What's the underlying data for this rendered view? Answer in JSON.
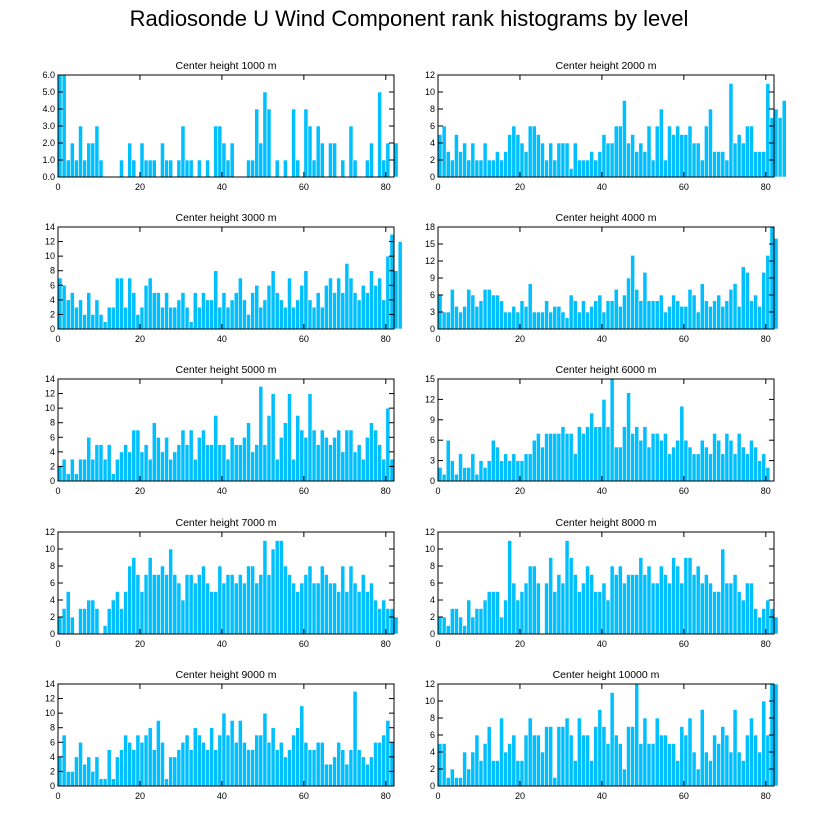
{
  "title": "Radiosonde U Wind Component rank histograms by level",
  "colors": {
    "bar": "#00BFFF",
    "bar_edge": "#ffffff",
    "axis": "#000000"
  },
  "chart_data": [
    {
      "type": "bar",
      "title": "Center height 1000 m",
      "xlim": [
        0,
        82
      ],
      "ylim": [
        0,
        6
      ],
      "xticks": [
        0,
        20,
        40,
        60,
        80
      ],
      "yticks": [
        0,
        1,
        2,
        3,
        4,
        5,
        6
      ],
      "ytick_labels": [
        "0.0",
        "1.0",
        "2.0",
        "3.0",
        "4.0",
        "5.0",
        "6.0"
      ],
      "values": [
        6,
        6,
        1,
        2,
        1,
        3,
        1,
        2,
        2,
        3,
        1,
        0,
        0,
        0,
        0,
        1,
        0,
        2,
        1,
        0,
        2,
        1,
        1,
        1,
        0,
        2,
        1,
        1,
        0,
        1,
        3,
        1,
        1,
        0,
        1,
        0,
        1,
        0,
        3,
        3,
        2,
        1,
        2,
        0,
        0,
        0,
        1,
        1,
        4,
        2,
        5,
        4,
        0,
        1,
        0,
        1,
        0,
        4,
        1,
        0,
        4,
        3,
        1,
        3,
        2,
        0,
        2,
        2,
        0,
        1,
        0,
        3,
        1,
        0,
        0,
        1,
        2,
        0,
        5,
        1,
        2,
        0,
        2
      ]
    },
    {
      "type": "bar",
      "title": "Center height 2000 m",
      "xlim": [
        0,
        82
      ],
      "ylim": [
        0,
        12
      ],
      "xticks": [
        0,
        20,
        40,
        60,
        80
      ],
      "yticks": [
        0,
        2,
        4,
        6,
        8,
        10,
        12
      ],
      "ytick_labels": [
        "0",
        "2",
        "4",
        "6",
        "8",
        "10",
        "12"
      ],
      "values": [
        5,
        6,
        3,
        2,
        5,
        3,
        4,
        2,
        4,
        2,
        2,
        4,
        2,
        2,
        3,
        2,
        3,
        5,
        6,
        5,
        4,
        3,
        6,
        6,
        5,
        4,
        2,
        4,
        2,
        4,
        4,
        4,
        1,
        4,
        2,
        2,
        2,
        3,
        2,
        3,
        5,
        4,
        4,
        6,
        6,
        9,
        4,
        5,
        3,
        4,
        3,
        6,
        2,
        6,
        8,
        2,
        6,
        5,
        6,
        5,
        5,
        6,
        4,
        4,
        2,
        6,
        8,
        3,
        3,
        3,
        2,
        11,
        4,
        5,
        4,
        6,
        6,
        3,
        3,
        3,
        11,
        7,
        8,
        7,
        9
      ]
    },
    {
      "type": "bar",
      "title": "Center height 3000 m",
      "xlim": [
        0,
        82
      ],
      "ylim": [
        0,
        14
      ],
      "xticks": [
        0,
        20,
        40,
        60,
        80
      ],
      "yticks": [
        0,
        2,
        4,
        6,
        8,
        10,
        12,
        14
      ],
      "ytick_labels": [
        "0",
        "2",
        "4",
        "6",
        "8",
        "10",
        "12",
        "14"
      ],
      "values": [
        7,
        6,
        4,
        5,
        3,
        4,
        2,
        5,
        2,
        4,
        2,
        1,
        3,
        3,
        7,
        7,
        3,
        7,
        5,
        2,
        3,
        6,
        7,
        5,
        5,
        3,
        5,
        3,
        3,
        4,
        5,
        3,
        1,
        5,
        3,
        5,
        4,
        4,
        8,
        3,
        5,
        3,
        4,
        5,
        7,
        4,
        2,
        5,
        6,
        3,
        4,
        6,
        8,
        5,
        4,
        3,
        7,
        3,
        4,
        6,
        8,
        4,
        3,
        5,
        3,
        6,
        7,
        5,
        7,
        5,
        9,
        7,
        5,
        4,
        6,
        5,
        8,
        6,
        7,
        4,
        10,
        13,
        8,
        12
      ]
    },
    {
      "type": "bar",
      "title": "Center height 4000 m",
      "xlim": [
        0,
        82
      ],
      "ylim": [
        0,
        18
      ],
      "xticks": [
        0,
        20,
        40,
        60,
        80
      ],
      "yticks": [
        0,
        3,
        6,
        9,
        12,
        15,
        18
      ],
      "ytick_labels": [
        "0",
        "3",
        "6",
        "9",
        "12",
        "15",
        "18"
      ],
      "values": [
        6,
        3,
        3,
        7,
        4,
        3,
        4,
        7,
        6,
        4,
        5,
        7,
        7,
        6,
        6,
        5,
        3,
        3,
        4,
        3,
        5,
        4,
        8,
        3,
        3,
        3,
        5,
        3,
        4,
        4,
        3,
        2,
        6,
        5,
        3,
        5,
        3,
        4,
        5,
        6,
        3,
        5,
        5,
        7,
        4,
        6,
        9,
        13,
        7,
        5,
        10,
        5,
        5,
        5,
        6,
        3,
        4,
        6,
        5,
        4,
        4,
        7,
        6,
        3,
        8,
        5,
        4,
        5,
        6,
        4,
        5,
        7,
        8,
        4,
        11,
        10,
        5,
        6,
        4,
        10,
        13,
        18,
        16
      ]
    },
    {
      "type": "bar",
      "title": "Center height 5000 m",
      "xlim": [
        0,
        82
      ],
      "ylim": [
        0,
        14
      ],
      "xticks": [
        0,
        20,
        40,
        60,
        80
      ],
      "yticks": [
        0,
        2,
        4,
        6,
        8,
        10,
        12,
        14
      ],
      "ytick_labels": [
        "0",
        "2",
        "4",
        "6",
        "8",
        "10",
        "12",
        "14"
      ],
      "values": [
        2,
        3,
        1,
        3,
        1,
        3,
        3,
        6,
        3,
        5,
        5,
        3,
        5,
        1,
        3,
        4,
        5,
        4,
        7,
        7,
        4,
        5,
        3,
        8,
        6,
        4,
        6,
        3,
        4,
        5,
        7,
        5,
        7,
        3,
        6,
        7,
        5,
        5,
        9,
        5,
        5,
        3,
        6,
        5,
        5,
        6,
        8,
        4,
        5,
        13,
        5,
        9,
        12,
        3,
        6,
        8,
        12,
        3,
        9,
        7,
        6,
        12,
        7,
        5,
        7,
        6,
        5,
        6,
        7,
        4,
        7,
        7,
        4,
        5,
        3,
        6,
        8,
        7,
        5,
        3,
        10,
        3
      ]
    },
    {
      "type": "bar",
      "title": "Center height 6000 m",
      "xlim": [
        0,
        82
      ],
      "ylim": [
        0,
        15
      ],
      "xticks": [
        0,
        20,
        40,
        60,
        80
      ],
      "yticks": [
        0,
        3,
        6,
        9,
        12,
        15
      ],
      "ytick_labels": [
        "0",
        "3",
        "6",
        "9",
        "12",
        "15"
      ],
      "values": [
        2,
        1,
        6,
        3,
        1,
        4,
        2,
        2,
        4,
        1,
        3,
        2,
        3,
        6,
        5,
        3,
        4,
        3,
        4,
        3,
        3,
        4,
        4,
        6,
        7,
        5,
        7,
        7,
        7,
        7,
        8,
        7,
        7,
        4,
        8,
        7,
        8,
        10,
        8,
        8,
        12,
        8,
        15,
        5,
        5,
        8,
        13,
        7,
        8,
        6,
        8,
        5,
        7,
        7,
        6,
        7,
        4,
        5,
        6,
        11,
        6,
        5,
        4,
        4,
        6,
        5,
        4,
        7,
        6,
        4,
        7,
        6,
        4,
        7,
        5,
        4,
        6,
        5,
        3,
        4,
        2,
        0
      ]
    },
    {
      "type": "bar",
      "title": "Center height 7000 m",
      "xlim": [
        0,
        82
      ],
      "ylim": [
        0,
        12
      ],
      "xticks": [
        0,
        20,
        40,
        60,
        80
      ],
      "yticks": [
        0,
        2,
        4,
        6,
        8,
        10,
        12
      ],
      "ytick_labels": [
        "0",
        "2",
        "4",
        "6",
        "8",
        "10",
        "12"
      ],
      "values": [
        2,
        3,
        5,
        2,
        0,
        3,
        3,
        4,
        4,
        3,
        0,
        1,
        3,
        4,
        5,
        3,
        5,
        8,
        9,
        7,
        5,
        7,
        9,
        7,
        7,
        8,
        7,
        10,
        7,
        6,
        4,
        7,
        7,
        6,
        7,
        8,
        6,
        5,
        5,
        8,
        6,
        7,
        7,
        6,
        7,
        6,
        8,
        8,
        6,
        7,
        11,
        7,
        10,
        11,
        11,
        8,
        7,
        6,
        5,
        6,
        7,
        8,
        6,
        6,
        8,
        7,
        6,
        6,
        5,
        8,
        5,
        8,
        6,
        5,
        7,
        5,
        6,
        4,
        3,
        4,
        3,
        3,
        2
      ]
    },
    {
      "type": "bar",
      "title": "Center height 8000 m",
      "xlim": [
        0,
        82
      ],
      "ylim": [
        0,
        12
      ],
      "xticks": [
        0,
        20,
        40,
        60,
        80
      ],
      "yticks": [
        0,
        2,
        4,
        6,
        8,
        10,
        12
      ],
      "ytick_labels": [
        "0",
        "2",
        "4",
        "6",
        "8",
        "10",
        "12"
      ],
      "values": [
        2,
        2,
        1,
        3,
        3,
        2,
        1,
        4,
        2,
        3,
        3,
        4,
        5,
        5,
        5,
        2,
        4,
        11,
        6,
        4,
        5,
        6,
        8,
        8,
        6,
        0,
        6,
        9,
        5,
        7,
        6,
        11,
        9,
        7,
        5,
        6,
        8,
        7,
        5,
        5,
        6,
        4,
        8,
        7,
        8,
        6,
        7,
        7,
        7,
        9,
        7,
        8,
        6,
        6,
        8,
        7,
        6,
        9,
        8,
        6,
        9,
        9,
        7,
        8,
        6,
        7,
        6,
        5,
        5,
        10,
        6,
        6,
        7,
        5,
        4,
        6,
        6,
        3,
        2,
        3,
        4,
        3,
        2
      ]
    },
    {
      "type": "bar",
      "title": "Center height 9000 m",
      "xlim": [
        0,
        82
      ],
      "ylim": [
        0,
        14
      ],
      "xticks": [
        0,
        20,
        40,
        60,
        80
      ],
      "yticks": [
        0,
        2,
        4,
        6,
        8,
        10,
        12,
        14
      ],
      "ytick_labels": [
        "0",
        "2",
        "4",
        "6",
        "8",
        "10",
        "12",
        "14"
      ],
      "values": [
        4,
        7,
        2,
        2,
        4,
        6,
        3,
        4,
        2,
        4,
        1,
        1,
        5,
        1,
        4,
        5,
        7,
        6,
        5,
        7,
        6,
        7,
        8,
        5,
        9,
        6,
        1,
        4,
        4,
        5,
        6,
        7,
        5,
        8,
        7,
        6,
        5,
        8,
        5,
        7,
        10,
        7,
        9,
        6,
        9,
        6,
        5,
        5,
        7,
        7,
        10,
        6,
        8,
        5,
        6,
        4,
        5,
        7,
        8,
        11,
        6,
        5,
        5,
        6,
        6,
        3,
        3,
        4,
        6,
        5,
        3,
        5,
        13,
        5,
        4,
        3,
        4,
        6,
        6,
        7,
        9,
        6
      ]
    },
    {
      "type": "bar",
      "title": "Center height 10000 m",
      "xlim": [
        0,
        82
      ],
      "ylim": [
        0,
        12
      ],
      "xticks": [
        0,
        20,
        40,
        60,
        80
      ],
      "yticks": [
        0,
        2,
        4,
        6,
        8,
        10,
        12
      ],
      "ytick_labels": [
        "0",
        "2",
        "4",
        "6",
        "8",
        "10",
        "12"
      ],
      "values": [
        5,
        5,
        1,
        2,
        1,
        1,
        4,
        2,
        4,
        6,
        3,
        5,
        7,
        3,
        3,
        8,
        4,
        5,
        6,
        3,
        3,
        6,
        8,
        6,
        6,
        4,
        7,
        7,
        1,
        7,
        7,
        8,
        6,
        3,
        8,
        6,
        6,
        3,
        7,
        9,
        7,
        5,
        11,
        6,
        5,
        2,
        7,
        7,
        12,
        5,
        8,
        5,
        5,
        8,
        6,
        6,
        5,
        5,
        3,
        7,
        6,
        8,
        4,
        2,
        9,
        4,
        3,
        6,
        5,
        7,
        6,
        4,
        9,
        4,
        3,
        6,
        8,
        6,
        4,
        10,
        6,
        12,
        12
      ]
    }
  ]
}
